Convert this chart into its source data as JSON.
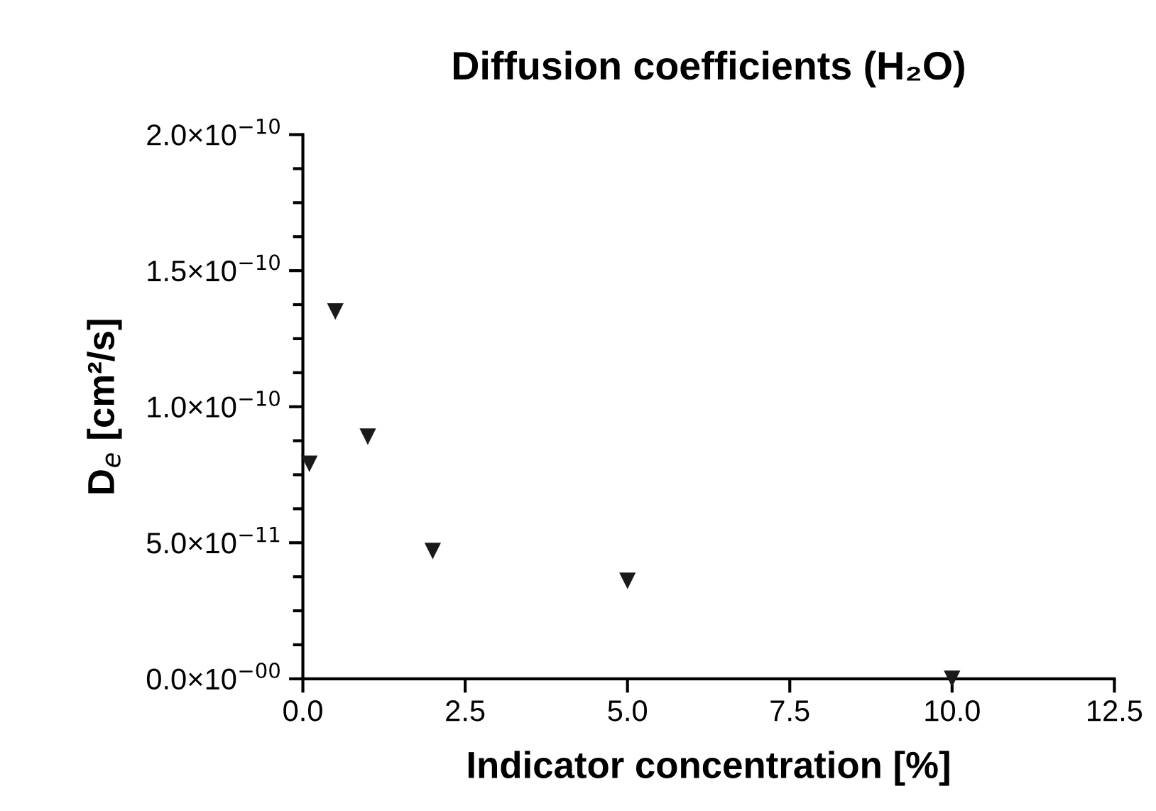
{
  "chart_data": {
    "type": "scatter",
    "title": "Diffusion coefficients (H₂O)",
    "xlabel": "Indicator concentration [%]",
    "ylabel": "D$_{e}$ [cm²/s]",
    "x": [
      0.1,
      0.5,
      1.0,
      2.0,
      5.0,
      10.0
    ],
    "series": [
      {
        "color": "#1a1a1a",
        "values": [
          7.9e-11,
          1.35e-10,
          8.9e-11,
          4.7e-11,
          3.6e-11,
          0.0
        ]
      }
    ],
    "marker": "triangle",
    "grid": false,
    "xlim": [
      0,
      12.5
    ],
    "xticks": [
      {
        "value": 0,
        "label": "0.0"
      },
      {
        "value": 2.5,
        "label": "2.5"
      },
      {
        "value": 5,
        "label": "5.0"
      },
      {
        "value": 7.5,
        "label": "7.5"
      },
      {
        "value": 10,
        "label": "10.0"
      },
      {
        "value": 12.5,
        "label": "12.5"
      }
    ],
    "ylim": [
      0,
      2e-10
    ],
    "yticks": [
      {
        "value": 0,
        "label": "0.0×10$^{−00}$"
      },
      {
        "value": 5e-11,
        "label": "5.0×10$^{−11}$"
      },
      {
        "value": 1e-10,
        "label": "1.0×10$^{−10}$"
      },
      {
        "value": 1.5e-10,
        "label": "1.5×10$^{−10}$"
      },
      {
        "value": 2e-10,
        "label": "2.0×10$^{−10}$"
      }
    ]
  }
}
